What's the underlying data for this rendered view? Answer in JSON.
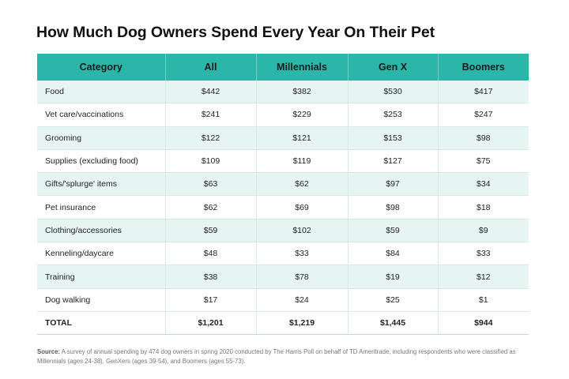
{
  "header_color": "#2ab7a9",
  "chart_data": {
    "type": "table",
    "title": "How Much Dog Owners Spend Every Year On Their Pet",
    "columns": [
      "Category",
      "All",
      "Millennials",
      "Gen X",
      "Boomers"
    ],
    "rows": [
      {
        "category": "Food",
        "values": [
          "$442",
          "$382",
          "$530",
          "$417"
        ]
      },
      {
        "category": "Vet care/vaccinations",
        "values": [
          "$241",
          "$229",
          "$253",
          "$247"
        ]
      },
      {
        "category": "Grooming",
        "values": [
          "$122",
          "$121",
          "$153",
          "$98"
        ]
      },
      {
        "category": "Supplies (excluding food)",
        "values": [
          "$109",
          "$119",
          "$127",
          "$75"
        ]
      },
      {
        "category": "Gifts/'splurge' items",
        "values": [
          "$63",
          "$62",
          "$97",
          "$34"
        ]
      },
      {
        "category": "Pet insurance",
        "values": [
          "$62",
          "$69",
          "$98",
          "$18"
        ]
      },
      {
        "category": "Clothing/accessories",
        "values": [
          "$59",
          "$102",
          "$59",
          "$9"
        ]
      },
      {
        "category": "Kenneling/daycare",
        "values": [
          "$48",
          "$33",
          "$84",
          "$33"
        ]
      },
      {
        "category": "Training",
        "values": [
          "$38",
          "$78",
          "$19",
          "$12"
        ]
      },
      {
        "category": "Dog walking",
        "values": [
          "$17",
          "$24",
          "$25",
          "$1"
        ]
      }
    ],
    "total": {
      "category": "TOTAL",
      "values": [
        "$1,201",
        "$1,219",
        "$1,445",
        "$944"
      ]
    }
  },
  "source": {
    "label": "Source:",
    "text": "A survey of annual spending by 474 dog owners in spring 2020 conducted by The Harris Poll on behalf of TD Ameritrade, including respondents who were classified as Millennials (ages 24-38), GenXers (ages 39-54), and Boomers (ages 55-73)."
  }
}
